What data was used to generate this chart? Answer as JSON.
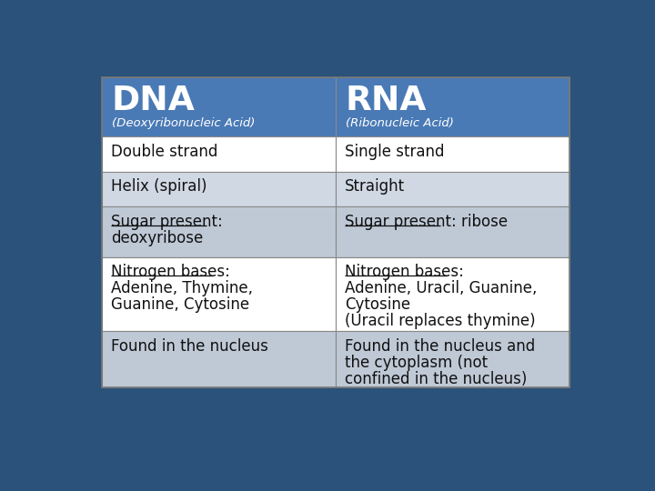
{
  "background_color": "#2A527A",
  "header_bg": "#4A7AB5",
  "row_bgs": [
    "#FFFFFF",
    "#D0D8E4",
    "#BFC9D6",
    "#FFFFFF",
    "#BFC9D6"
  ],
  "header_text_color": "#FFFFFF",
  "body_text_color": "#111111",
  "border_color": "#888888",
  "header": {
    "dna_title": "DNA",
    "rna_title": "RNA",
    "dna_sub": "(Deoxyribonucleic Acid)",
    "rna_sub": "(Ribonucleic Acid)"
  },
  "rows": [
    {
      "dna": "Double strand",
      "rna": "Single strand",
      "dna_ul": "",
      "rna_ul": ""
    },
    {
      "dna": "Helix (spiral)",
      "rna": "Straight",
      "dna_ul": "",
      "rna_ul": ""
    },
    {
      "dna": "Sugar present:\ndeoxyribose",
      "rna": "Sugar present: ribose",
      "dna_ul": "Sugar present:",
      "rna_ul": "Sugar present:"
    },
    {
      "dna": "Nitrogen bases:\nAdenine, Thymine,\nGuanine, Cytosine",
      "rna": "Nitrogen bases:\nAdenine, Uracil, Guanine,\nCytosine\n(Uracil replaces thymine)",
      "dna_ul": "Nitrogen bases:",
      "rna_ul": "Nitrogen bases:"
    },
    {
      "dna": "Found in the nucleus",
      "rna": "Found in the nucleus and\nthe cytoplasm (not\nconfined in the nucleus)",
      "dna_ul": "",
      "rna_ul": ""
    }
  ]
}
